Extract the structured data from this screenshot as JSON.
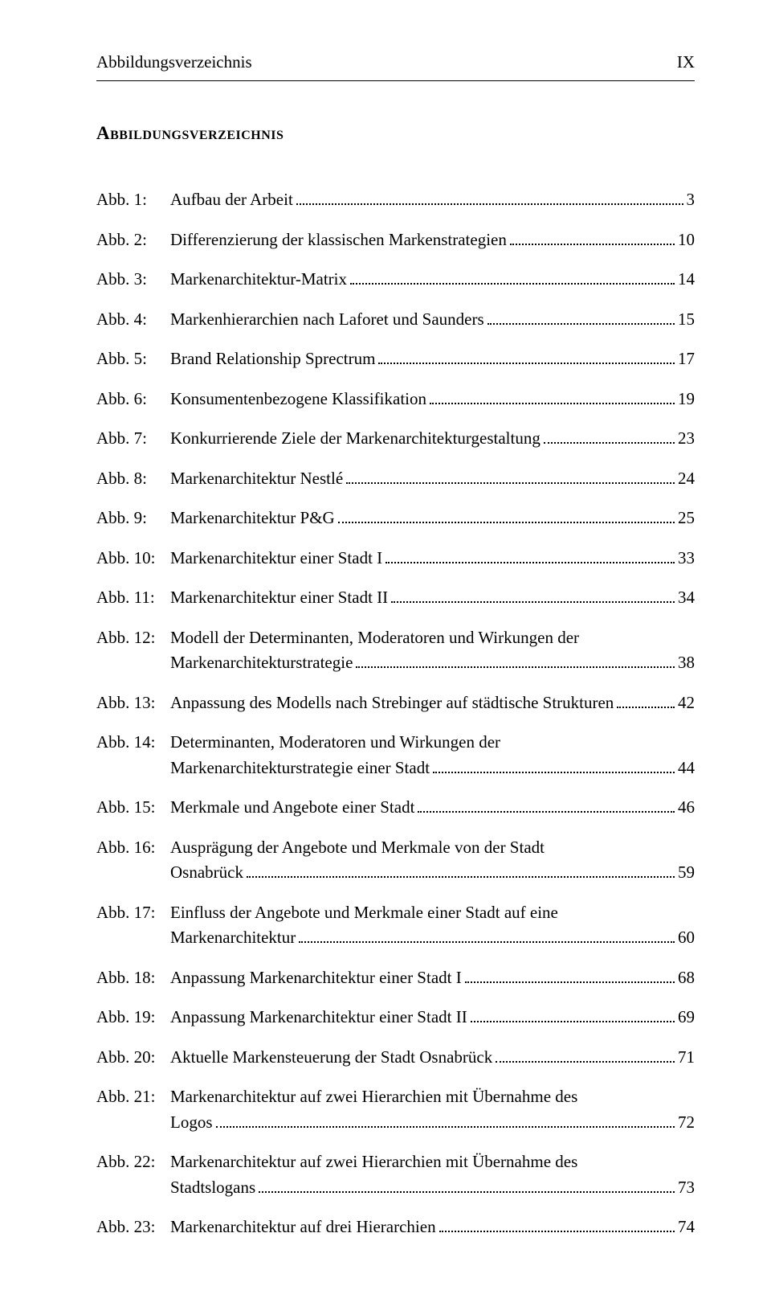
{
  "header": {
    "left": "Abbildungsverzeichnis",
    "right": "IX"
  },
  "section_title": "Abbildungsverzeichnis",
  "entries": [
    {
      "label": "Abb. 1:",
      "lines": [
        "Aufbau der Arbeit"
      ],
      "page": "3"
    },
    {
      "label": "Abb. 2:",
      "lines": [
        "Differenzierung der klassischen Markenstrategien"
      ],
      "page": "10"
    },
    {
      "label": "Abb. 3:",
      "lines": [
        "Markenarchitektur-Matrix"
      ],
      "page": "14"
    },
    {
      "label": "Abb. 4:",
      "lines": [
        "Markenhierarchien nach Laforet und Saunders"
      ],
      "page": "15"
    },
    {
      "label": "Abb. 5:",
      "lines": [
        "Brand Relationship Sprectrum"
      ],
      "page": "17"
    },
    {
      "label": "Abb. 6:",
      "lines": [
        "Konsumentenbezogene Klassifikation"
      ],
      "page": "19"
    },
    {
      "label": "Abb. 7:",
      "lines": [
        "Konkurrierende Ziele der Markenarchitekturgestaltung"
      ],
      "page": "23"
    },
    {
      "label": "Abb. 8:",
      "lines": [
        "Markenarchitektur Nestlé"
      ],
      "page": "24"
    },
    {
      "label": "Abb. 9:",
      "lines": [
        "Markenarchitektur P&G"
      ],
      "page": "25"
    },
    {
      "label": "Abb. 10:",
      "lines": [
        "Markenarchitektur einer Stadt I"
      ],
      "page": "33"
    },
    {
      "label": "Abb. 11:",
      "lines": [
        "Markenarchitektur einer Stadt II"
      ],
      "page": "34"
    },
    {
      "label": "Abb. 12:",
      "lines": [
        "Modell der Determinanten, Moderatoren und Wirkungen der",
        "Markenarchitekturstrategie"
      ],
      "page": "38"
    },
    {
      "label": "Abb. 13:",
      "lines": [
        "Anpassung des Modells nach Strebinger auf städtische Strukturen"
      ],
      "page": "42"
    },
    {
      "label": "Abb. 14:",
      "lines": [
        "Determinanten, Moderatoren und Wirkungen der",
        "Markenarchitekturstrategie einer Stadt"
      ],
      "page": "44"
    },
    {
      "label": "Abb. 15:",
      "lines": [
        "Merkmale und Angebote einer Stadt"
      ],
      "page": "46"
    },
    {
      "label": "Abb. 16:",
      "lines": [
        "Ausprägung der Angebote und Merkmale von der Stadt",
        "Osnabrück"
      ],
      "page": "59"
    },
    {
      "label": "Abb. 17:",
      "lines": [
        "Einfluss der Angebote und Merkmale einer Stadt auf eine",
        "Markenarchitektur"
      ],
      "page": "60"
    },
    {
      "label": "Abb. 18:",
      "lines": [
        "Anpassung Markenarchitektur einer Stadt I"
      ],
      "page": "68"
    },
    {
      "label": "Abb. 19:",
      "lines": [
        "Anpassung Markenarchitektur einer Stadt II"
      ],
      "page": "69"
    },
    {
      "label": "Abb. 20:",
      "lines": [
        "Aktuelle Markensteuerung der Stadt Osnabrück"
      ],
      "page": "71"
    },
    {
      "label": "Abb. 21:",
      "lines": [
        "Markenarchitektur auf zwei Hierarchien mit Übernahme des",
        "Logos"
      ],
      "page": "72"
    },
    {
      "label": "Abb. 22:",
      "lines": [
        "Markenarchitektur auf zwei Hierarchien mit Übernahme des",
        "Stadtslogans"
      ],
      "page": "73"
    },
    {
      "label": "Abb. 23:",
      "lines": [
        "Markenarchitektur auf drei Hierarchien"
      ],
      "page": "74"
    }
  ]
}
